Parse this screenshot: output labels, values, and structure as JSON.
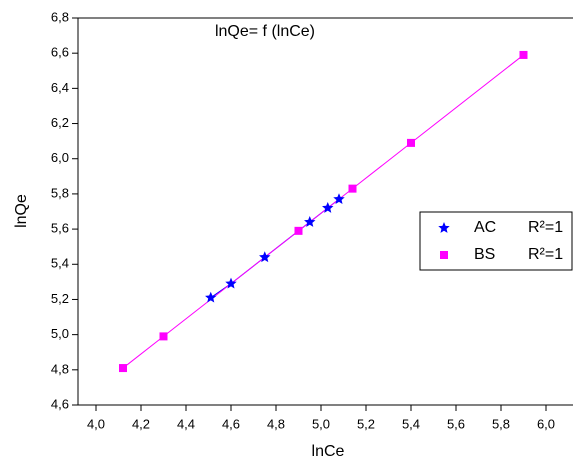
{
  "chart_data": {
    "type": "scatter",
    "title": "lnQe= f (lnCe)",
    "x_label": "lnCe",
    "y_label": "lnQe",
    "xlim": [
      3.92,
      6.12
    ],
    "ylim": [
      4.6,
      6.8
    ],
    "xticks": [
      {
        "value": 4.0,
        "label": "4,0"
      },
      {
        "value": 4.2,
        "label": "4,2"
      },
      {
        "value": 4.4,
        "label": "4,4"
      },
      {
        "value": 4.6,
        "label": "4,6"
      },
      {
        "value": 4.8,
        "label": "4,8"
      },
      {
        "value": 5.0,
        "label": "5,0"
      },
      {
        "value": 5.2,
        "label": "5,2"
      },
      {
        "value": 5.4,
        "label": "5,4"
      },
      {
        "value": 5.6,
        "label": "5,6"
      },
      {
        "value": 5.8,
        "label": "5,8"
      },
      {
        "value": 6.0,
        "label": "6,0"
      }
    ],
    "yticks": [
      {
        "value": 4.6,
        "label": "4,6"
      },
      {
        "value": 4.8,
        "label": "4,8"
      },
      {
        "value": 5.0,
        "label": "5,0"
      },
      {
        "value": 5.2,
        "label": "5,2"
      },
      {
        "value": 5.4,
        "label": "5,4"
      },
      {
        "value": 5.6,
        "label": "5,6"
      },
      {
        "value": 5.8,
        "label": "5,8"
      },
      {
        "value": 6.0,
        "label": "6,0"
      },
      {
        "value": 6.2,
        "label": "6,2"
      },
      {
        "value": 6.4,
        "label": "6,4"
      },
      {
        "value": 6.6,
        "label": "6,6"
      },
      {
        "value": 6.8,
        "label": "6,8"
      }
    ],
    "grid": false,
    "series": [
      {
        "name": "AC",
        "note": "R²=1",
        "marker": "star",
        "color": "#0000ff",
        "x": [
          4.51,
          4.6,
          4.75,
          4.95,
          5.03,
          5.08
        ],
        "values": [
          5.21,
          5.29,
          5.44,
          5.64,
          5.72,
          5.77
        ]
      },
      {
        "name": "BS",
        "note": "R²=1",
        "marker": "square",
        "color": "#ff00ff",
        "x": [
          4.12,
          4.3,
          4.9,
          5.14,
          5.4,
          5.9
        ],
        "values": [
          4.81,
          4.99,
          5.59,
          5.83,
          6.09,
          6.59
        ]
      }
    ]
  }
}
